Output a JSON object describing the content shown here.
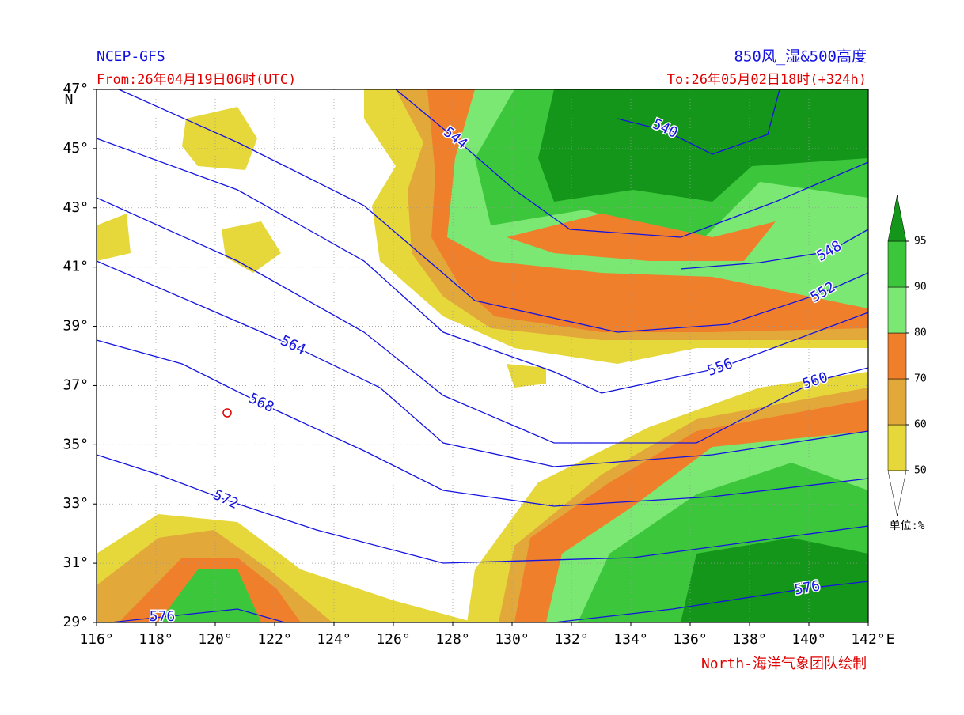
{
  "header": {
    "left_title": "NCEP-GFS",
    "right_title": "850风_湿&500高度",
    "from": "From:26年04月19日06时(UTC)",
    "to": "To:26年05月02日18时(+324h)"
  },
  "map": {
    "xlim": [
      116,
      142
    ],
    "ylim": [
      29,
      47
    ],
    "xticks": [
      {
        "value": 116,
        "label": "116°"
      },
      {
        "value": 118,
        "label": "118°"
      },
      {
        "value": 120,
        "label": "120°"
      },
      {
        "value": 122,
        "label": "122°"
      },
      {
        "value": 124,
        "label": "124°"
      },
      {
        "value": 126,
        "label": "126°"
      },
      {
        "value": 128,
        "label": "128°"
      },
      {
        "value": 130,
        "label": "130°"
      },
      {
        "value": 132,
        "label": "132°"
      },
      {
        "value": 134,
        "label": "134°"
      },
      {
        "value": 136,
        "label": "136°"
      },
      {
        "value": 138,
        "label": "138°"
      },
      {
        "value": 140,
        "label": "140°"
      },
      {
        "value": 142,
        "label": "142°"
      }
    ],
    "yticks": [
      {
        "value": 29,
        "label": "29°"
      },
      {
        "value": 31,
        "label": "31°"
      },
      {
        "value": 33,
        "label": "33°"
      },
      {
        "value": 35,
        "label": "35°"
      },
      {
        "value": 37,
        "label": "37°"
      },
      {
        "value": 39,
        "label": "39°"
      },
      {
        "value": 41,
        "label": "41°"
      },
      {
        "value": 43,
        "label": "43°"
      },
      {
        "value": 45,
        "label": "45°"
      },
      {
        "value": 47,
        "label": "47°"
      }
    ],
    "x_unit": "E",
    "y_unit": "N",
    "contour_labels": [
      540,
      544,
      548,
      552,
      556,
      560,
      564,
      568,
      572,
      576,
      576
    ]
  },
  "colorbar": {
    "levels": [
      50,
      60,
      70,
      80,
      90,
      95
    ],
    "colors": [
      "#e6d83a",
      "#e2a83a",
      "#f07f2c",
      "#7ae872",
      "#3cc63c",
      "#14961a"
    ],
    "unit_label": "单位:%"
  },
  "footer": {
    "credit": "North-海洋气象团队绘制"
  }
}
